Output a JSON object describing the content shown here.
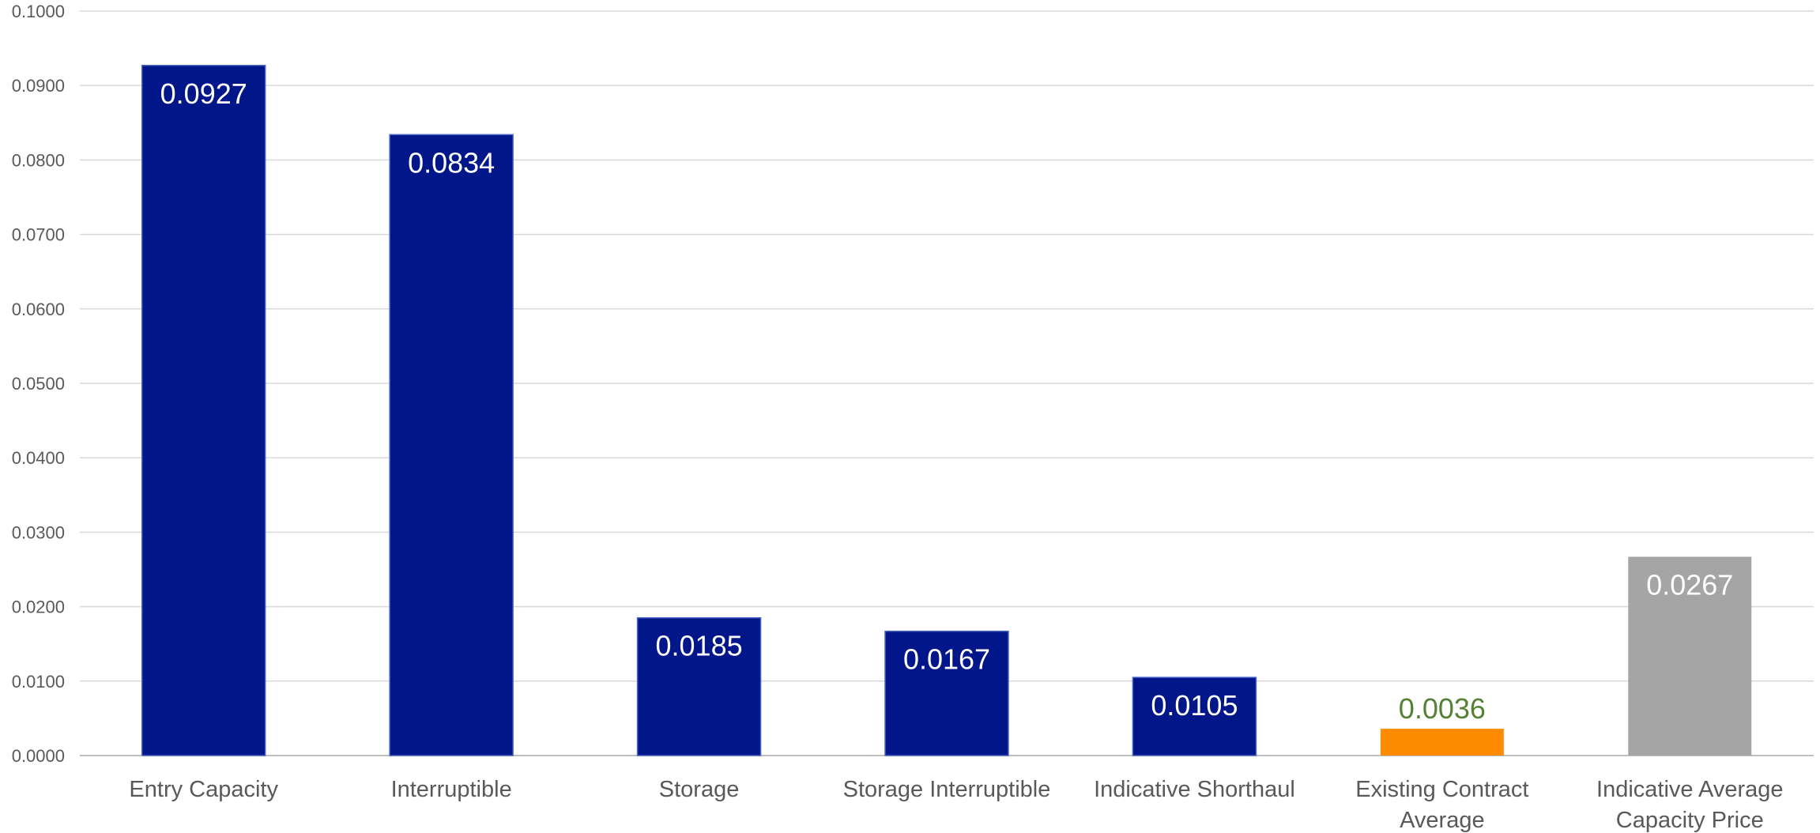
{
  "chart_data": {
    "type": "bar",
    "title": "",
    "xlabel": "",
    "ylabel": "",
    "ylim": [
      0,
      0.1
    ],
    "yticks": [
      "0.0000",
      "0.0100",
      "0.0200",
      "0.0300",
      "0.0400",
      "0.0500",
      "0.0600",
      "0.0700",
      "0.0800",
      "0.0900",
      "0.1000"
    ],
    "grid": true,
    "legend": "none",
    "categories": [
      [
        "Entry Capacity"
      ],
      [
        "Interruptible"
      ],
      [
        "Storage"
      ],
      [
        "Storage Interruptible"
      ],
      [
        "Indicative Shorthaul"
      ],
      [
        "Existing Contract",
        "Average"
      ],
      [
        "Indicative Average",
        "Capacity Price"
      ]
    ],
    "values": [
      0.0927,
      0.0834,
      0.0185,
      0.0167,
      0.0105,
      0.0036,
      0.0267
    ],
    "data_labels": [
      "0.0927",
      "0.0834",
      "0.0185",
      "0.0167",
      "0.0105",
      "0.0036",
      "0.0267"
    ],
    "bar_colors": [
      "#001689",
      "#001689",
      "#001689",
      "#001689",
      "#001689",
      "#FF8C00",
      "#A5A5A5"
    ],
    "label_colors": [
      "#FFFFFF",
      "#FFFFFF",
      "#FFFFFF",
      "#FFFFFF",
      "#FFFFFF",
      "#548235",
      "#FFFFFF"
    ],
    "label_positions": [
      "inside",
      "inside",
      "inside",
      "inside",
      "inside",
      "above",
      "inside"
    ],
    "colors": {
      "grid": "#D9D9D9",
      "axis": "#BFBFBF",
      "text": "#595959"
    }
  }
}
